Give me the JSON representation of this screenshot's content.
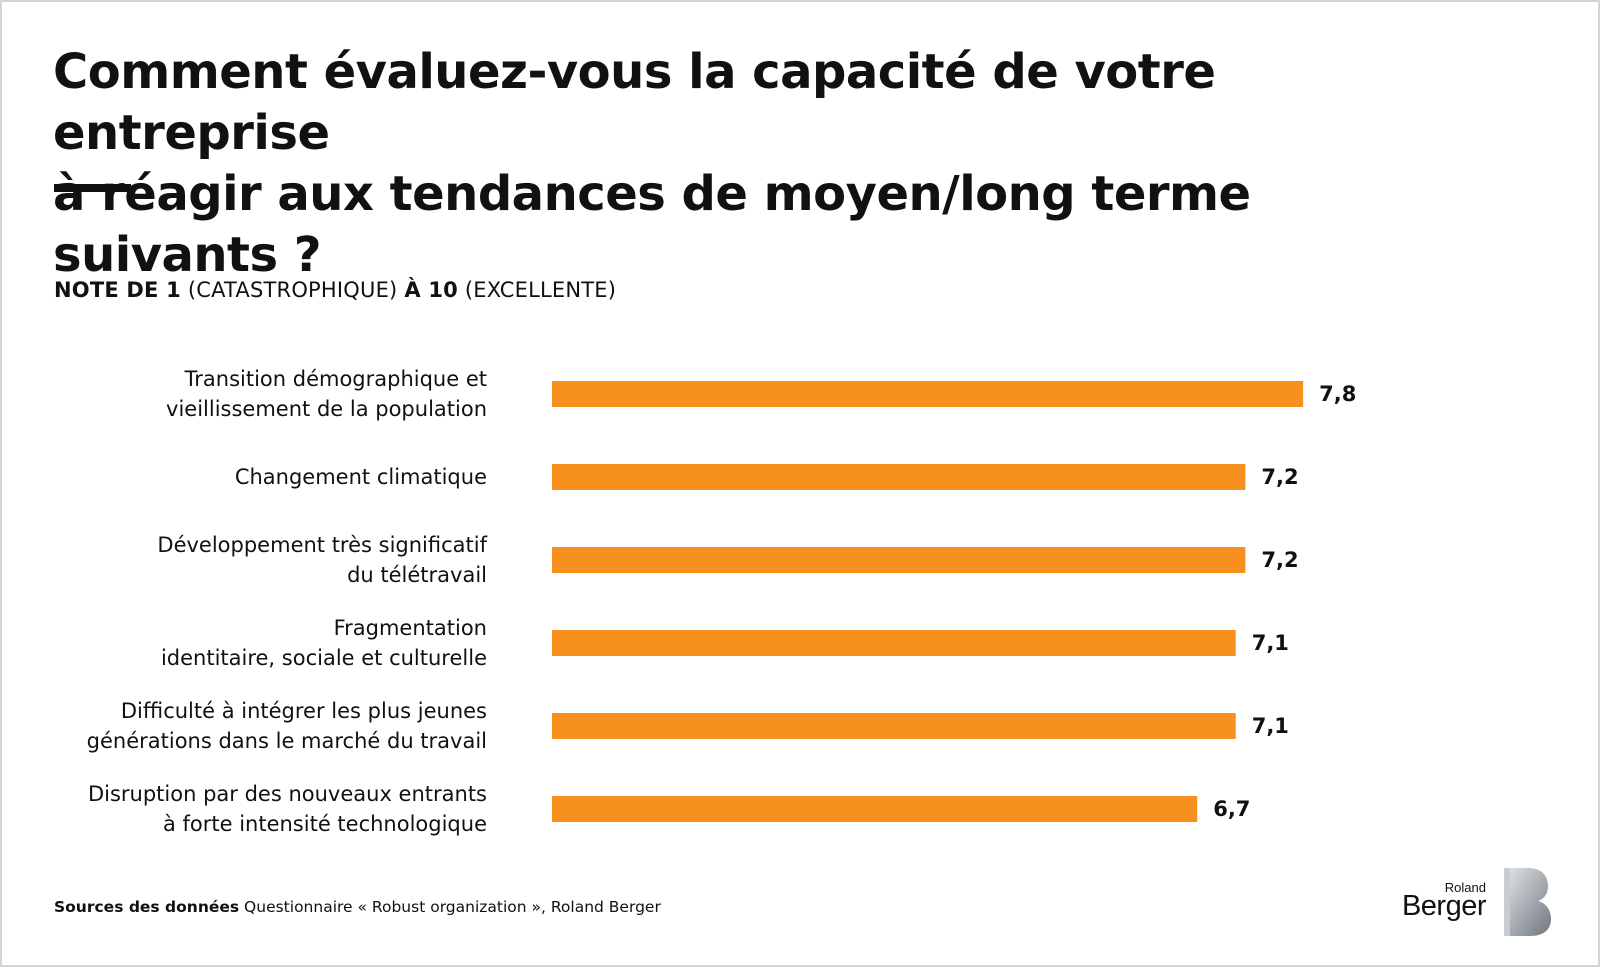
{
  "title_line1": "Comment évaluez-vous la capacité de votre entreprise",
  "title_line2": "à réagir aux tendances de moyen/long terme suivants ?",
  "subtitle": {
    "part1_bold": "NOTE DE 1",
    "part2": "(CATASTROPHIQUE)",
    "part3_bold": "À 10",
    "part4": "(EXCELLENTE)"
  },
  "source": {
    "label": "Sources des données",
    "text": "Questionnaire « Robust organization », Roland Berger"
  },
  "logo": {
    "line1": "Roland",
    "line2": "Berger"
  },
  "colors": {
    "bar": "#F7901E",
    "text": "#111111",
    "logo_gradient": [
      "#d9dde0",
      "#8a9096"
    ]
  },
  "chart_data": {
    "type": "bar",
    "orientation": "horizontal",
    "categories": [
      [
        "Transition démographique et",
        "vieillissement de la population"
      ],
      [
        "Changement climatique"
      ],
      [
        "Développement très significatif",
        "du télétravail"
      ],
      [
        "Fragmentation",
        "identitaire, sociale et culturelle"
      ],
      [
        "Difficulté à intégrer les plus jeunes",
        "générations dans le marché du travail"
      ],
      [
        "Disruption par des nouveaux entrants",
        "à forte intensité technologique"
      ]
    ],
    "values": [
      7.8,
      7.2,
      7.2,
      7.1,
      7.1,
      6.7
    ],
    "value_labels": [
      "7,8",
      "7,2",
      "7,2",
      "7,1",
      "7,1",
      "6,7"
    ],
    "scale": [
      1,
      10
    ],
    "grid": false,
    "legend": "none"
  }
}
